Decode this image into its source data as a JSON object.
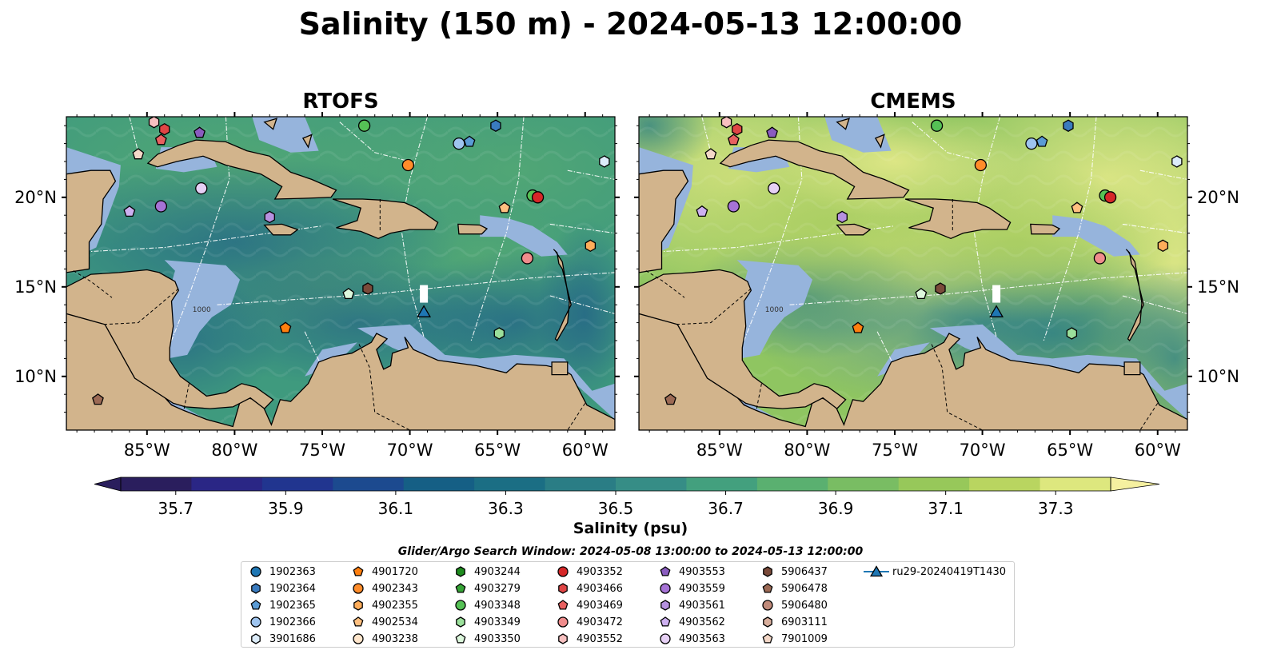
{
  "title": "Salinity (150 m) - 2024-05-13 12:00:00",
  "panels": [
    {
      "name": "RTOFS",
      "marker_fill_bias": "rtofs"
    },
    {
      "name": "CMEMS",
      "marker_fill_bias": "cmems"
    }
  ],
  "map": {
    "lon_ticks": [
      "85°W",
      "80°W",
      "75°W",
      "70°W",
      "65°W",
      "60°W"
    ],
    "lat_ticks": [
      "20°N",
      "15°N",
      "10°N"
    ],
    "lon_range": [
      -89.6,
      -58.3
    ],
    "lat_range": [
      7.0,
      24.5
    ],
    "contour_label": "1000",
    "land_color": "#d2b48c",
    "shelf_color": "#96b4dc",
    "coastline_color": "#000000"
  },
  "colorbar": {
    "label": "Salinity (psu)",
    "tick_labels": [
      "35.7",
      "35.9",
      "36.1",
      "36.3",
      "36.5",
      "36.7",
      "36.9",
      "37.1",
      "37.3"
    ],
    "vmin": 35.6,
    "vmax": 37.4,
    "extend": "both",
    "colors": [
      "#2a1e5d",
      "#2a2685",
      "#21358f",
      "#1c4a8f",
      "#155f85",
      "#1b6e84",
      "#2a7d85",
      "#368d86",
      "#43a07e",
      "#5ab070",
      "#79bd63",
      "#97c85a",
      "#b9d560",
      "#dde77e"
    ]
  },
  "search_window": "Glider/Argo Search Window: 2024-05-08 13:00:00 to 2024-05-13 12:00:00",
  "chart_data": {
    "type": "scatter",
    "title": "Salinity (150 m) - 2024-05-13 12:00:00",
    "xlabel": "",
    "ylabel": "",
    "xlim": [
      -89.6,
      -58.3
    ],
    "ylim": [
      7.0,
      24.5
    ],
    "series": [
      {
        "name": "1902363",
        "marker": "circle",
        "color": "#1f77b4",
        "points": []
      },
      {
        "name": "1902364",
        "marker": "hexagon",
        "color": "#3a7bbf",
        "points": [
          [
            -65.1,
            24.0
          ]
        ]
      },
      {
        "name": "1902365",
        "marker": "pentagon",
        "color": "#5a9bd5",
        "points": [
          [
            -66.6,
            23.1
          ]
        ]
      },
      {
        "name": "1902366",
        "marker": "circle",
        "color": "#9ec4ef",
        "points": [
          [
            -67.2,
            23.0
          ]
        ]
      },
      {
        "name": "3901686",
        "marker": "hexagon",
        "color": "#dcecfa",
        "points": [
          [
            -58.9,
            22.0
          ]
        ]
      },
      {
        "name": "4901720",
        "marker": "pentagon",
        "color": "#ff7f0e",
        "points": [
          [
            -77.1,
            12.7
          ]
        ]
      },
      {
        "name": "4902343",
        "marker": "circle",
        "color": "#ff8c2a",
        "points": [
          [
            -70.1,
            21.8
          ]
        ]
      },
      {
        "name": "4902355",
        "marker": "hexagon",
        "color": "#ffad5a",
        "points": [
          [
            -59.7,
            17.3
          ]
        ]
      },
      {
        "name": "4902534",
        "marker": "pentagon",
        "color": "#ffc080",
        "points": [
          [
            -64.6,
            19.4
          ]
        ]
      },
      {
        "name": "4903238",
        "marker": "circle",
        "color": "#ffe6cc",
        "points": []
      },
      {
        "name": "4903244",
        "marker": "hexagon",
        "color": "#1e8c1e",
        "points": []
      },
      {
        "name": "4903279",
        "marker": "pentagon",
        "color": "#36a436",
        "points": []
      },
      {
        "name": "4903348",
        "marker": "circle",
        "color": "#55c155",
        "points": [
          [
            -72.6,
            24.0
          ],
          [
            -63.0,
            20.1
          ]
        ]
      },
      {
        "name": "4903349",
        "marker": "hexagon",
        "color": "#9be09b",
        "points": [
          [
            -64.9,
            12.4
          ]
        ]
      },
      {
        "name": "4903350",
        "marker": "pentagon",
        "color": "#dcf7dc",
        "points": [
          [
            -73.5,
            14.6
          ]
        ]
      },
      {
        "name": "4903352",
        "marker": "circle",
        "color": "#d62728",
        "points": [
          [
            -62.7,
            20.0
          ]
        ]
      },
      {
        "name": "4903466",
        "marker": "hexagon",
        "color": "#e04545",
        "points": [
          [
            -84.0,
            23.8
          ]
        ]
      },
      {
        "name": "4903469",
        "marker": "pentagon",
        "color": "#e86060",
        "points": [
          [
            -84.2,
            23.2
          ]
        ]
      },
      {
        "name": "4903472",
        "marker": "circle",
        "color": "#f08c8c",
        "points": [
          [
            -63.3,
            16.6
          ]
        ]
      },
      {
        "name": "4903552",
        "marker": "hexagon",
        "color": "#f7c0c0",
        "points": [
          [
            -84.6,
            24.2
          ]
        ]
      },
      {
        "name": "4903553",
        "marker": "pentagon",
        "color": "#8a5cbf",
        "points": [
          [
            -82.0,
            23.6
          ]
        ]
      },
      {
        "name": "4903559",
        "marker": "circle",
        "color": "#a673d6",
        "points": [
          [
            -84.2,
            19.5
          ]
        ]
      },
      {
        "name": "4903561",
        "marker": "hexagon",
        "color": "#b691e0",
        "points": [
          [
            -78.0,
            18.9
          ]
        ]
      },
      {
        "name": "4903562",
        "marker": "pentagon",
        "color": "#cdb0f0",
        "points": [
          [
            -86.0,
            19.2
          ]
        ]
      },
      {
        "name": "4903563",
        "marker": "circle",
        "color": "#e6d0f5",
        "points": [
          [
            -81.9,
            20.5
          ]
        ]
      },
      {
        "name": "5906437",
        "marker": "hexagon",
        "color": "#7a4a3a",
        "points": [
          [
            -72.4,
            14.9
          ]
        ]
      },
      {
        "name": "5906478",
        "marker": "pentagon",
        "color": "#9c6a55",
        "points": [
          [
            -87.8,
            8.7
          ]
        ]
      },
      {
        "name": "5906480",
        "marker": "circle",
        "color": "#c08a7a",
        "points": []
      },
      {
        "name": "6903111",
        "marker": "hexagon",
        "color": "#d8ae9c",
        "points": []
      },
      {
        "name": "7901009",
        "marker": "pentagon",
        "color": "#f4d8c8",
        "points": [
          [
            -85.5,
            22.4
          ]
        ]
      },
      {
        "name": "ru29-20240419T1430",
        "marker": "triangle-line",
        "color": "#1f77b4",
        "points": [
          [
            -69.2,
            13.6
          ]
        ]
      }
    ]
  }
}
